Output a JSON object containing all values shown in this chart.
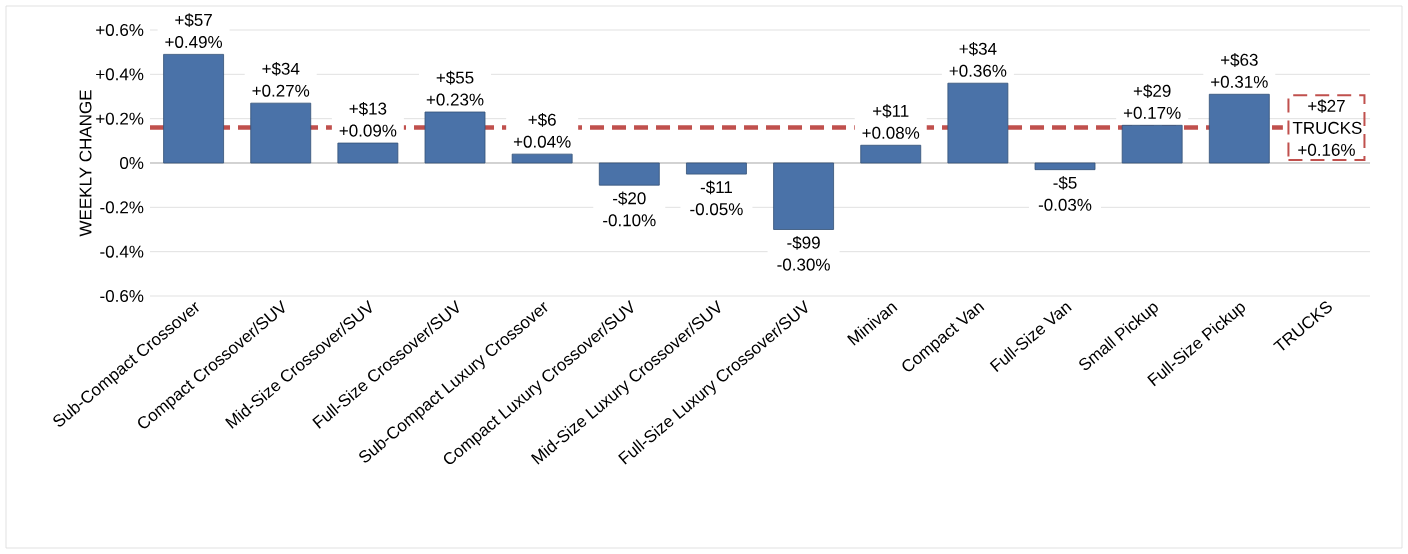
{
  "chart_data": {
    "type": "bar",
    "ylabel": "WEEKLY CHANGE",
    "categories": [
      "Sub-Compact Crossover",
      "Compact Crossover/SUV",
      "Mid-Size Crossover/SUV",
      "Full-Size Crossover/SUV",
      "Sub-Compact Luxury Crossover",
      "Compact Luxury Crossover/SUV",
      "Mid-Size Luxury Crossover/SUV",
      "Full-Size Luxury Crossover/SUV",
      "Minivan",
      "Compact Van",
      "Full-Size Van",
      "Small Pickup",
      "Full-Size Pickup",
      "TRUCKS"
    ],
    "values": [
      0.49,
      0.27,
      0.09,
      0.23,
      0.04,
      -0.1,
      -0.05,
      -0.3,
      0.08,
      0.36,
      -0.03,
      0.17,
      0.31,
      null
    ],
    "value_labels": [
      "+$57 +0.49%",
      "+$34 +0.27%",
      "+$13 +0.09%",
      "+$55 +0.23%",
      "+$6 +0.04%",
      "-$20 -0.10%",
      "-$11 -0.05%",
      "-$99 -0.30%",
      "+$11 +0.08%",
      "+$34 +0.36%",
      "-$5 -0.03%",
      "+$29 +0.17%",
      "+$63 +0.31%",
      null
    ],
    "color": "#4a72a8",
    "ylim": [
      -0.6,
      0.6
    ],
    "yticks": [
      {
        "value": -0.6,
        "label": "-0.6%"
      },
      {
        "value": -0.4,
        "label": "-0.4%"
      },
      {
        "value": -0.2,
        "label": "-0.2%"
      },
      {
        "value": 0,
        "label": "0%"
      },
      {
        "value": 0.2,
        "label": "+0.2%"
      },
      {
        "value": 0.4,
        "label": "+0.4%"
      },
      {
        "value": 0.6,
        "label": "+0.6%"
      }
    ],
    "grid": "y",
    "ref_lines": [
      {
        "axis": "y",
        "value": 0.16,
        "label": "+$27 TRUCKS +0.16%",
        "color": "#c0504d",
        "line_style": "dashed"
      }
    ]
  }
}
